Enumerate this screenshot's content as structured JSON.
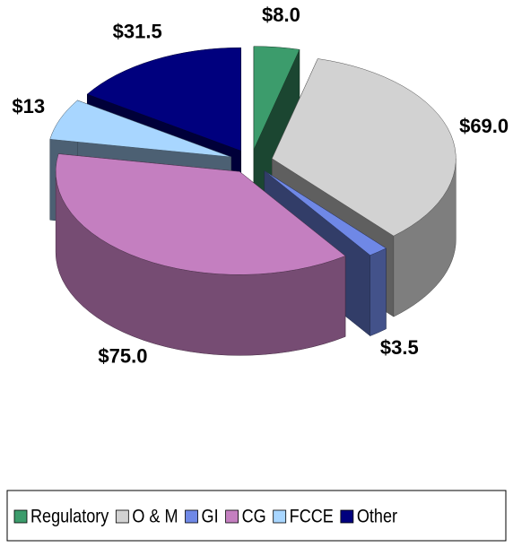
{
  "chart_data": {
    "type": "pie",
    "categories": [
      "Regulatory",
      "O & M",
      "GI",
      "CG",
      "FCCE",
      "Other"
    ],
    "values": [
      8,
      69,
      3.5,
      75,
      13,
      31.5
    ],
    "value_labels": [
      "$8.0",
      "$69.0",
      "$3.5",
      "$75.0",
      "$13",
      "$31.5"
    ],
    "colors": [
      "#3c9c6c",
      "#d2d2d2",
      "#6f88e6",
      "#c47fc0",
      "#a8d6ff",
      "#00007e"
    ],
    "legend": "bottom"
  }
}
